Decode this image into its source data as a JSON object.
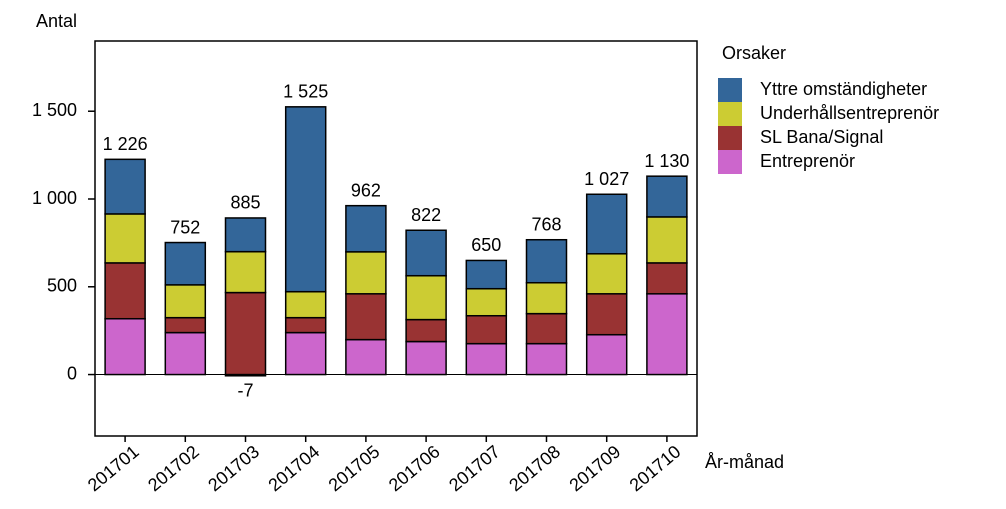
{
  "chart_data": {
    "type": "stacked_bar",
    "y_label": "Antal",
    "x_label": "År-månad",
    "legend_title": "Orsaker",
    "legend_position": "right",
    "categories": [
      "201701",
      "201702",
      "201703",
      "201704",
      "201705",
      "201706",
      "201707",
      "201708",
      "201709",
      "201710"
    ],
    "series": [
      {
        "name": "Entreprenör",
        "color": "#cc66cc",
        "values": [
          318,
          239,
          -7,
          239,
          199,
          188,
          176,
          176,
          227,
          460
        ],
        "value_labels": [
          null,
          null,
          "-7",
          null,
          null,
          null,
          null,
          null,
          null,
          null
        ]
      },
      {
        "name": "SL Bana/Signal",
        "color": "#993333",
        "values": [
          318,
          85,
          467,
          85,
          261,
          125,
          159,
          171,
          233,
          176
        ]
      },
      {
        "name": "Underhållsentreprenör",
        "color": "#cccc33",
        "values": [
          279,
          187,
          233,
          148,
          239,
          250,
          154,
          176,
          228,
          262
        ]
      },
      {
        "name": "Yttre omständigheter",
        "color": "#336699",
        "values": [
          311,
          241,
          192,
          1053,
          263,
          259,
          161,
          245,
          339,
          232
        ]
      }
    ],
    "totals": {
      "values": [
        1226,
        752,
        885,
        1525,
        962,
        822,
        650,
        768,
        1027,
        1130
      ],
      "value_labels": [
        "1 226",
        "752",
        "885",
        "1 525",
        "962",
        "822",
        "650",
        "768",
        "1 027",
        "1 130"
      ]
    },
    "ylim": [
      -350,
      1900
    ],
    "yticks": [
      0,
      500,
      {
        "value": 1000,
        "label": "1 000"
      },
      {
        "value": 1500,
        "label": "1 500"
      }
    ]
  }
}
